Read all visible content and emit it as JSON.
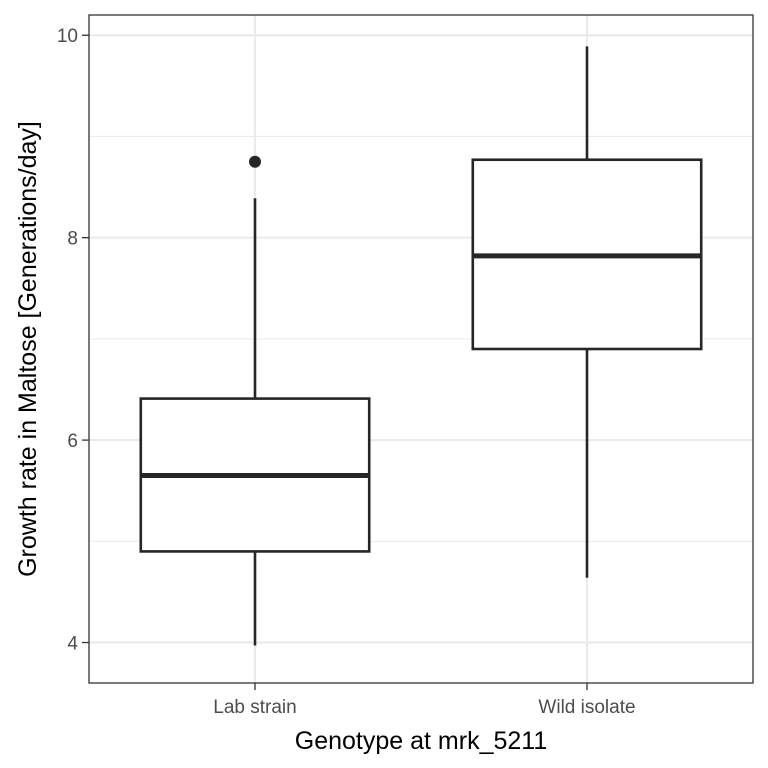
{
  "chart_data": {
    "type": "box",
    "title": "",
    "xlabel": "Genotype at mrk_5211",
    "ylabel": "Growth rate in Maltose [Generations/day]",
    "ylim": [
      3.6,
      10.2
    ],
    "y_ticks": [
      4,
      6,
      8,
      10
    ],
    "y_minor_ticks": [
      5,
      7,
      9
    ],
    "grid": true,
    "legend": "none",
    "categories": [
      "Lab strain",
      "Wild isolate"
    ],
    "boxes": [
      {
        "category": "Lab strain",
        "whisker_low": 3.97,
        "q1": 4.9,
        "median": 5.65,
        "q3": 6.41,
        "whisker_high": 8.39,
        "outliers": [
          8.75
        ]
      },
      {
        "category": "Wild isolate",
        "whisker_low": 4.64,
        "q1": 6.9,
        "median": 7.82,
        "q3": 8.77,
        "whisker_high": 9.89,
        "outliers": []
      }
    ],
    "colors": {
      "box_line": "#262626",
      "grid": "#ebebeb",
      "panel_border": "#333333"
    }
  }
}
